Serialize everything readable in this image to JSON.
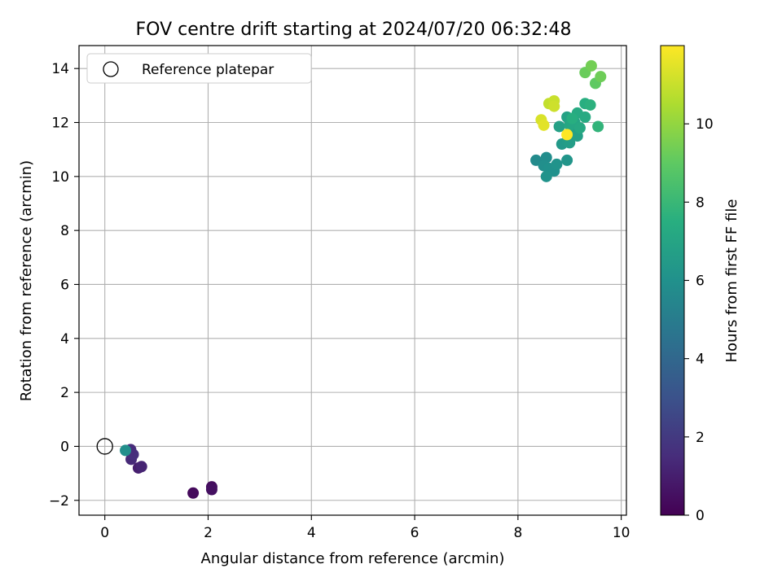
{
  "chart_data": {
    "type": "scatter",
    "title": "FOV centre drift starting at 2024/07/20 06:32:48",
    "xlabel": "Angular distance from reference (arcmin)",
    "ylabel": "Rotation from reference (arcmin)",
    "xlim": [
      -0.5,
      10.1
    ],
    "ylim": [
      -2.55,
      14.85
    ],
    "xticks": [
      0,
      2,
      4,
      6,
      8,
      10
    ],
    "yticks": [
      -2,
      0,
      2,
      4,
      6,
      8,
      10,
      12,
      14
    ],
    "grid": true,
    "legend": {
      "placement": "top-left",
      "entries": [
        "Reference platepar"
      ]
    },
    "reference_point": {
      "name": "Reference platepar",
      "x": 0,
      "y": 0
    },
    "colorbar": {
      "label": "Hours from first FF file",
      "colormap": "viridis",
      "range": [
        0,
        12
      ],
      "ticks": [
        0,
        2,
        4,
        6,
        8,
        10
      ]
    },
    "points": [
      {
        "x": 1.71,
        "y": -1.73,
        "h": 0.3
      },
      {
        "x": 2.07,
        "y": -1.5,
        "h": 0.4
      },
      {
        "x": 2.07,
        "y": -1.6,
        "h": 0.5
      },
      {
        "x": 0.65,
        "y": -0.8,
        "h": 1.0
      },
      {
        "x": 0.71,
        "y": -0.75,
        "h": 1.2
      },
      {
        "x": 0.51,
        "y": -0.48,
        "h": 1.4
      },
      {
        "x": 0.55,
        "y": -0.3,
        "h": 1.6
      },
      {
        "x": 0.5,
        "y": -0.12,
        "h": 1.5
      },
      {
        "x": 0.4,
        "y": -0.15,
        "h": 5.9
      },
      {
        "x": 8.35,
        "y": 10.6,
        "h": 5.7
      },
      {
        "x": 8.55,
        "y": 10.7,
        "h": 5.8
      },
      {
        "x": 8.5,
        "y": 10.4,
        "h": 5.9
      },
      {
        "x": 8.6,
        "y": 10.3,
        "h": 6.0
      },
      {
        "x": 8.7,
        "y": 10.2,
        "h": 6.0
      },
      {
        "x": 8.75,
        "y": 10.45,
        "h": 6.1
      },
      {
        "x": 8.55,
        "y": 10.0,
        "h": 6.1
      },
      {
        "x": 8.95,
        "y": 10.6,
        "h": 6.2
      },
      {
        "x": 8.85,
        "y": 11.2,
        "h": 6.4
      },
      {
        "x": 8.95,
        "y": 11.3,
        "h": 6.5
      },
      {
        "x": 9.0,
        "y": 11.25,
        "h": 6.6
      },
      {
        "x": 9.05,
        "y": 11.6,
        "h": 6.7
      },
      {
        "x": 9.15,
        "y": 11.5,
        "h": 6.8
      },
      {
        "x": 8.8,
        "y": 11.85,
        "h": 6.8
      },
      {
        "x": 8.95,
        "y": 12.2,
        "h": 6.9
      },
      {
        "x": 9.1,
        "y": 12.0,
        "h": 7.0
      },
      {
        "x": 9.0,
        "y": 11.9,
        "h": 7.1
      },
      {
        "x": 9.2,
        "y": 11.8,
        "h": 7.2
      },
      {
        "x": 9.3,
        "y": 12.2,
        "h": 7.3
      },
      {
        "x": 9.15,
        "y": 12.35,
        "h": 7.3
      },
      {
        "x": 9.05,
        "y": 12.15,
        "h": 7.5
      },
      {
        "x": 9.3,
        "y": 12.7,
        "h": 7.5
      },
      {
        "x": 9.4,
        "y": 12.65,
        "h": 7.6
      },
      {
        "x": 9.55,
        "y": 11.85,
        "h": 7.8
      },
      {
        "x": 9.5,
        "y": 13.45,
        "h": 9.0
      },
      {
        "x": 9.3,
        "y": 13.85,
        "h": 9.2
      },
      {
        "x": 9.6,
        "y": 13.7,
        "h": 9.3
      },
      {
        "x": 9.42,
        "y": 14.1,
        "h": 9.4
      },
      {
        "x": 8.6,
        "y": 12.7,
        "h": 10.9
      },
      {
        "x": 8.7,
        "y": 12.8,
        "h": 11.0
      },
      {
        "x": 8.7,
        "y": 12.6,
        "h": 11.1
      },
      {
        "x": 8.45,
        "y": 12.1,
        "h": 11.3
      },
      {
        "x": 8.5,
        "y": 11.9,
        "h": 11.5
      },
      {
        "x": 8.95,
        "y": 11.55,
        "h": 12.0
      }
    ]
  }
}
